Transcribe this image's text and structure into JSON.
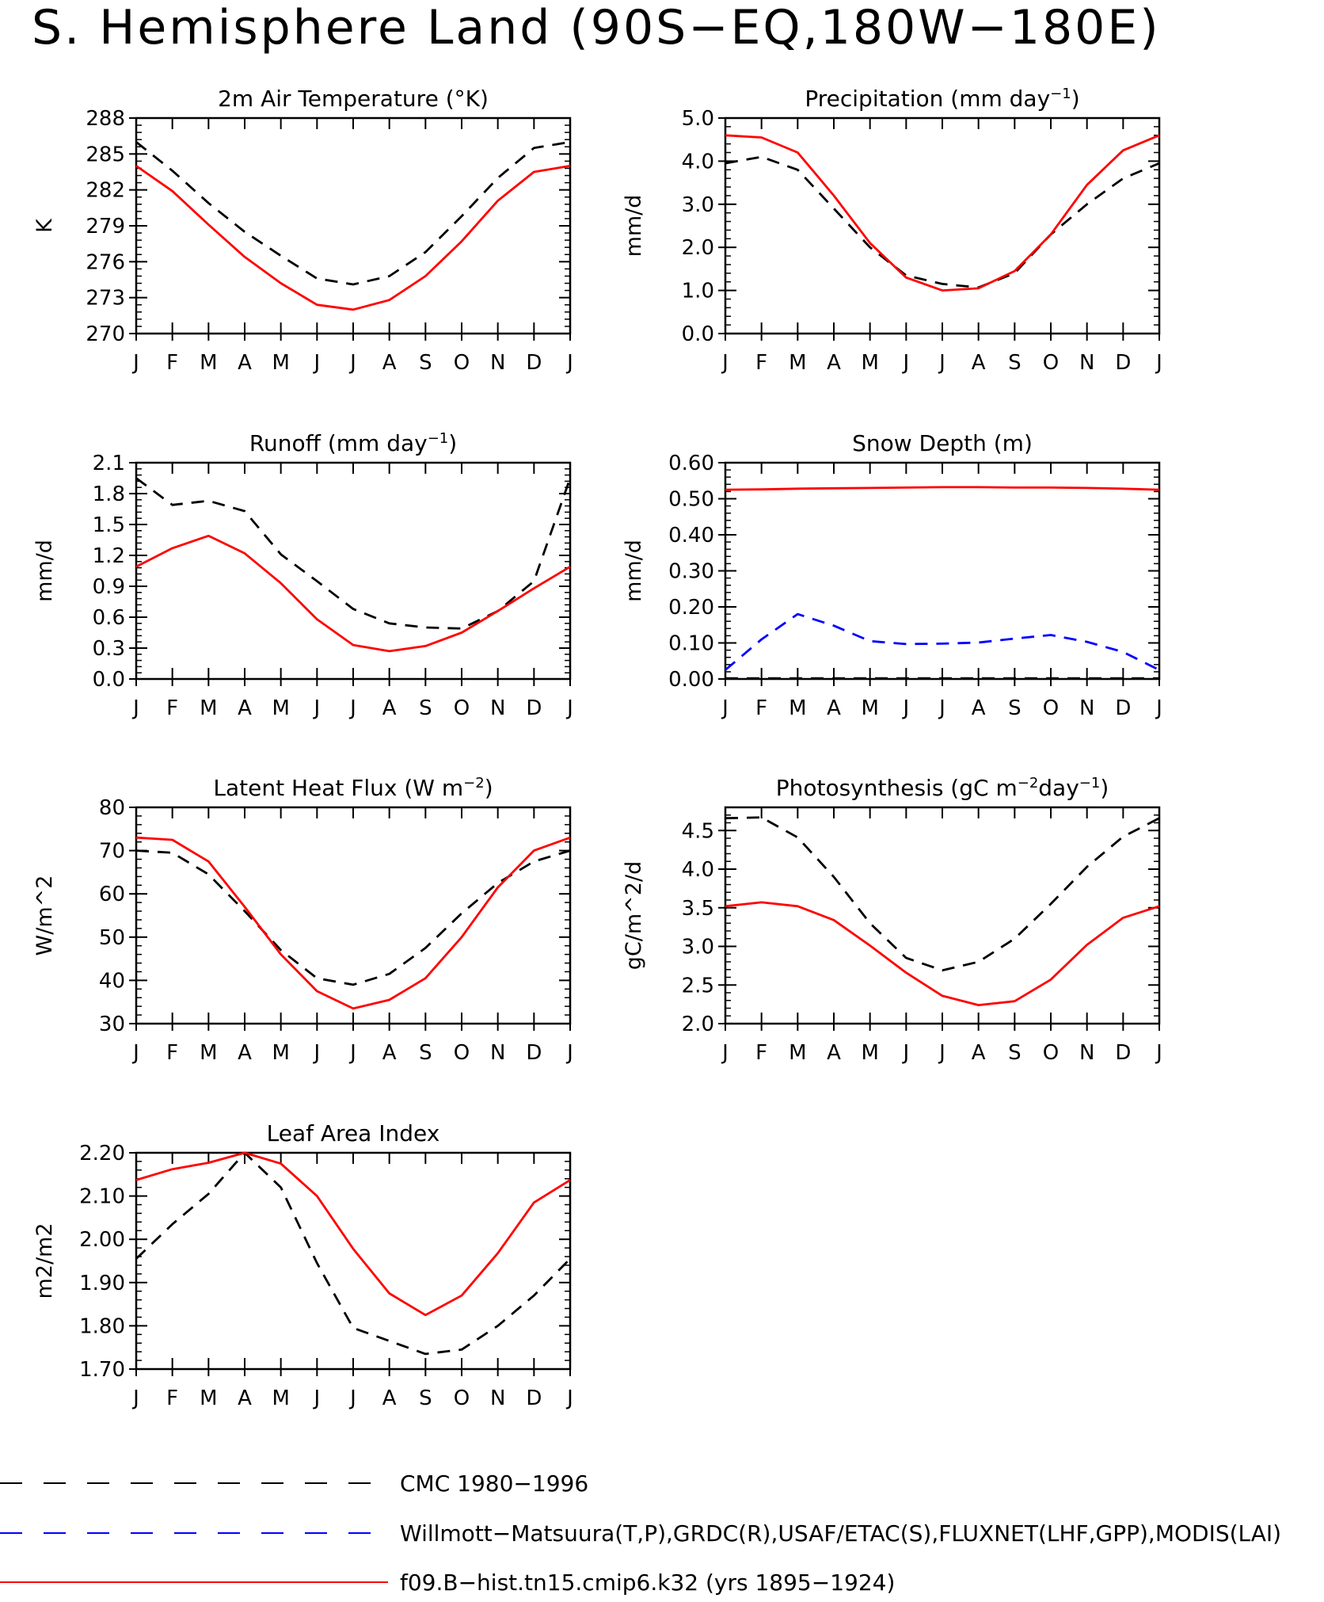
{
  "page_title": "S. Hemisphere Land (90S−EQ,180W−180E)",
  "months": [
    "J",
    "F",
    "M",
    "A",
    "M",
    "J",
    "J",
    "A",
    "S",
    "O",
    "N",
    "D",
    "J"
  ],
  "legend": [
    {
      "name": "CMC 1980−1996",
      "color": "#000000",
      "dash": "long"
    },
    {
      "name": "Willmott−Matsuura(T,P),GRDC(R),USAF/ETAC(S),FLUXNET(LHF,GPP),MODIS(LAI)",
      "color": "#0000ff",
      "dash": "long"
    },
    {
      "name": "f09.B−hist.tn15.cmip6.k32 (yrs 1895−1924)",
      "color": "#ff0000",
      "dash": "solid"
    }
  ],
  "colors": {
    "cmc": "#000000",
    "obs": "#0000ff",
    "model": "#ff0000"
  },
  "chart_data": [
    {
      "type": "line",
      "title": "2m Air Temperature (°K)",
      "title_parts": [
        {
          "t": "2m Air Temperature (°K)"
        }
      ],
      "ylabel": "K",
      "ylim": [
        270,
        288
      ],
      "yticks": [
        270,
        273,
        276,
        279,
        282,
        285,
        288
      ],
      "ytick_labels": [
        "270",
        "273",
        "276",
        "279",
        "282",
        "285",
        "288"
      ],
      "series": [
        {
          "color": "#000000",
          "dash": true,
          "values": [
            286.0,
            283.6,
            280.9,
            278.5,
            276.5,
            274.6,
            274.1,
            274.8,
            276.8,
            279.8,
            283.0,
            285.5,
            286.0
          ]
        },
        {
          "color": "#ff0000",
          "dash": false,
          "values": [
            284.0,
            281.9,
            279.1,
            276.4,
            274.2,
            272.4,
            272.0,
            272.8,
            274.8,
            277.7,
            281.1,
            283.5,
            284.0
          ]
        }
      ]
    },
    {
      "type": "line",
      "title": "Precipitation (mm day⁻¹)",
      "title_parts": [
        {
          "t": "Precipitation (mm day"
        },
        {
          "t": "−1",
          "sup": true
        },
        {
          "t": ")"
        }
      ],
      "ylabel": "mm/d",
      "ylim": [
        0.0,
        5.0
      ],
      "yticks": [
        0.0,
        1.0,
        2.0,
        3.0,
        4.0,
        5.0
      ],
      "ytick_labels": [
        "0.0",
        "1.0",
        "2.0",
        "3.0",
        "4.0",
        "5.0"
      ],
      "series": [
        {
          "color": "#000000",
          "dash": true,
          "values": [
            3.95,
            4.1,
            3.8,
            2.9,
            2.0,
            1.35,
            1.15,
            1.07,
            1.4,
            2.3,
            3.0,
            3.6,
            3.95
          ]
        },
        {
          "color": "#ff0000",
          "dash": false,
          "values": [
            4.6,
            4.55,
            4.2,
            3.2,
            2.1,
            1.3,
            1.0,
            1.05,
            1.45,
            2.3,
            3.45,
            4.25,
            4.6
          ]
        }
      ]
    },
    {
      "type": "line",
      "title": "Runoff (mm day⁻¹)",
      "title_parts": [
        {
          "t": "Runoff (mm day"
        },
        {
          "t": "−1",
          "sup": true
        },
        {
          "t": ")"
        }
      ],
      "ylabel": "mm/d",
      "ylim": [
        0.0,
        2.1
      ],
      "yticks": [
        0.0,
        0.3,
        0.6,
        0.9,
        1.2,
        1.5,
        1.8,
        2.1
      ],
      "ytick_labels": [
        "0.0",
        "0.3",
        "0.6",
        "0.9",
        "1.2",
        "1.5",
        "1.8",
        "2.1"
      ],
      "series": [
        {
          "color": "#000000",
          "dash": true,
          "values": [
            1.95,
            1.69,
            1.73,
            1.63,
            1.21,
            0.95,
            0.68,
            0.54,
            0.5,
            0.49,
            0.66,
            0.95,
            1.95
          ]
        },
        {
          "color": "#ff0000",
          "dash": false,
          "values": [
            1.09,
            1.27,
            1.39,
            1.22,
            0.93,
            0.58,
            0.33,
            0.27,
            0.32,
            0.45,
            0.66,
            0.88,
            1.09
          ]
        }
      ]
    },
    {
      "type": "line",
      "title": "Snow Depth (m)",
      "title_parts": [
        {
          "t": "Snow Depth (m)"
        }
      ],
      "ylabel": "mm/d",
      "ylim": [
        0.0,
        0.6
      ],
      "yticks": [
        0.0,
        0.1,
        0.2,
        0.3,
        0.4,
        0.5,
        0.6
      ],
      "ytick_labels": [
        "0.00",
        "0.10",
        "0.20",
        "0.30",
        "0.40",
        "0.50",
        "0.60"
      ],
      "series": [
        {
          "color": "#000000",
          "dash": true,
          "values": [
            0.002,
            0.002,
            0.002,
            0.002,
            0.002,
            0.002,
            0.002,
            0.002,
            0.002,
            0.002,
            0.002,
            0.002,
            0.002
          ]
        },
        {
          "color": "#0000ff",
          "dash": true,
          "values": [
            0.025,
            0.11,
            0.18,
            0.148,
            0.105,
            0.097,
            0.098,
            0.101,
            0.112,
            0.122,
            0.103,
            0.075,
            0.025
          ]
        },
        {
          "color": "#ff0000",
          "dash": false,
          "values": [
            0.525,
            0.526,
            0.528,
            0.529,
            0.53,
            0.531,
            0.532,
            0.532,
            0.531,
            0.531,
            0.53,
            0.528,
            0.525
          ]
        }
      ]
    },
    {
      "type": "line",
      "title": "Latent Heat Flux (W m⁻²)",
      "title_parts": [
        {
          "t": "Latent Heat Flux (W m"
        },
        {
          "t": "−2",
          "sup": true
        },
        {
          "t": ")"
        }
      ],
      "ylabel": "W/m^2",
      "ylim": [
        30,
        80
      ],
      "yticks": [
        30,
        40,
        50,
        60,
        70,
        80
      ],
      "ytick_labels": [
        "30",
        "40",
        "50",
        "60",
        "70",
        "80"
      ],
      "series": [
        {
          "color": "#000000",
          "dash": true,
          "values": [
            70.0,
            69.5,
            64.5,
            56.0,
            47.0,
            40.5,
            39.0,
            41.5,
            47.5,
            55.5,
            62.5,
            67.5,
            70.0
          ]
        },
        {
          "color": "#ff0000",
          "dash": false,
          "values": [
            73.0,
            72.5,
            67.5,
            57.0,
            46.0,
            37.5,
            33.5,
            35.5,
            40.5,
            50.0,
            61.5,
            70.0,
            73.0
          ]
        }
      ]
    },
    {
      "type": "line",
      "title": "Photosynthesis (gC m⁻²day⁻¹)",
      "title_parts": [
        {
          "t": "Photosynthesis (gC m"
        },
        {
          "t": "−2",
          "sup": true
        },
        {
          "t": "day"
        },
        {
          "t": "−1",
          "sup": true
        },
        {
          "t": ")"
        }
      ],
      "ylabel": "gC/m^2/d",
      "ylim": [
        2.0,
        4.8
      ],
      "yticks": [
        2.0,
        2.5,
        3.0,
        3.5,
        4.0,
        4.5
      ],
      "ytick_labels": [
        "2.0",
        "2.5",
        "3.0",
        "3.5",
        "4.0",
        "4.5"
      ],
      "series": [
        {
          "color": "#000000",
          "dash": true,
          "values": [
            4.66,
            4.67,
            4.41,
            3.9,
            3.3,
            2.85,
            2.69,
            2.8,
            3.1,
            3.55,
            4.03,
            4.42,
            4.66
          ]
        },
        {
          "color": "#ff0000",
          "dash": false,
          "values": [
            3.52,
            3.57,
            3.52,
            3.34,
            3.01,
            2.66,
            2.36,
            2.24,
            2.29,
            2.57,
            3.02,
            3.37,
            3.52
          ]
        }
      ]
    },
    {
      "type": "line",
      "title": "Leaf Area Index",
      "title_parts": [
        {
          "t": "Leaf Area Index"
        }
      ],
      "ylabel": "m2/m2",
      "ylim": [
        1.7,
        2.2
      ],
      "yticks": [
        1.7,
        1.8,
        1.9,
        2.0,
        2.1,
        2.2
      ],
      "ytick_labels": [
        "1.70",
        "1.80",
        "1.90",
        "2.00",
        "2.10",
        "2.20"
      ],
      "series": [
        {
          "color": "#000000",
          "dash": true,
          "values": [
            1.955,
            2.035,
            2.105,
            2.2,
            2.12,
            1.945,
            1.795,
            1.765,
            1.735,
            1.745,
            1.8,
            1.87,
            1.955
          ]
        },
        {
          "color": "#ff0000",
          "dash": false,
          "values": [
            2.137,
            2.162,
            2.177,
            2.2,
            2.175,
            2.1,
            1.978,
            1.875,
            1.825,
            1.87,
            1.968,
            2.085,
            2.137
          ]
        }
      ]
    }
  ]
}
